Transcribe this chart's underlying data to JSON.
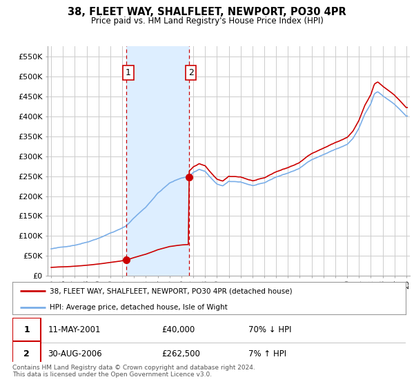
{
  "title": "38, FLEET WAY, SHALFLEET, NEWPORT, PO30 4PR",
  "subtitle": "Price paid vs. HM Land Registry's House Price Index (HPI)",
  "legend_line1": "38, FLEET WAY, SHALFLEET, NEWPORT, PO30 4PR (detached house)",
  "legend_line2": "HPI: Average price, detached house, Isle of Wight",
  "transactions": [
    {
      "label": "1",
      "date": "11-MAY-2001",
      "price": 40000,
      "year": 2001.36,
      "price_str": "£40,000",
      "hpi_pct": "70% ↓ HPI"
    },
    {
      "label": "2",
      "date": "30-AUG-2006",
      "price": 262500,
      "year": 2006.66,
      "price_str": "£262,500",
      "hpi_pct": "7% ↑ HPI"
    }
  ],
  "footnote1": "Contains HM Land Registry data © Crown copyright and database right 2024.",
  "footnote2": "This data is licensed under the Open Government Licence v3.0.",
  "ylim": [
    0,
    575000
  ],
  "yticks": [
    0,
    50000,
    100000,
    150000,
    200000,
    250000,
    300000,
    350000,
    400000,
    450000,
    500000,
    550000
  ],
  "ytick_labels": [
    "£0",
    "£50K",
    "£100K",
    "£150K",
    "£200K",
    "£250K",
    "£300K",
    "£350K",
    "£400K",
    "£450K",
    "£500K",
    "£550K"
  ],
  "hpi_color": "#7aaee8",
  "price_color": "#cc0000",
  "shade_color": "#ddeeff",
  "vline_color": "#cc0000",
  "bg_color": "#ffffff",
  "grid_color": "#cccccc",
  "t1_year": 2001.36,
  "t1_price": 40000,
  "t2_year": 2006.66,
  "t2_price": 262500,
  "xmin": 1994.7,
  "xmax": 2025.3
}
